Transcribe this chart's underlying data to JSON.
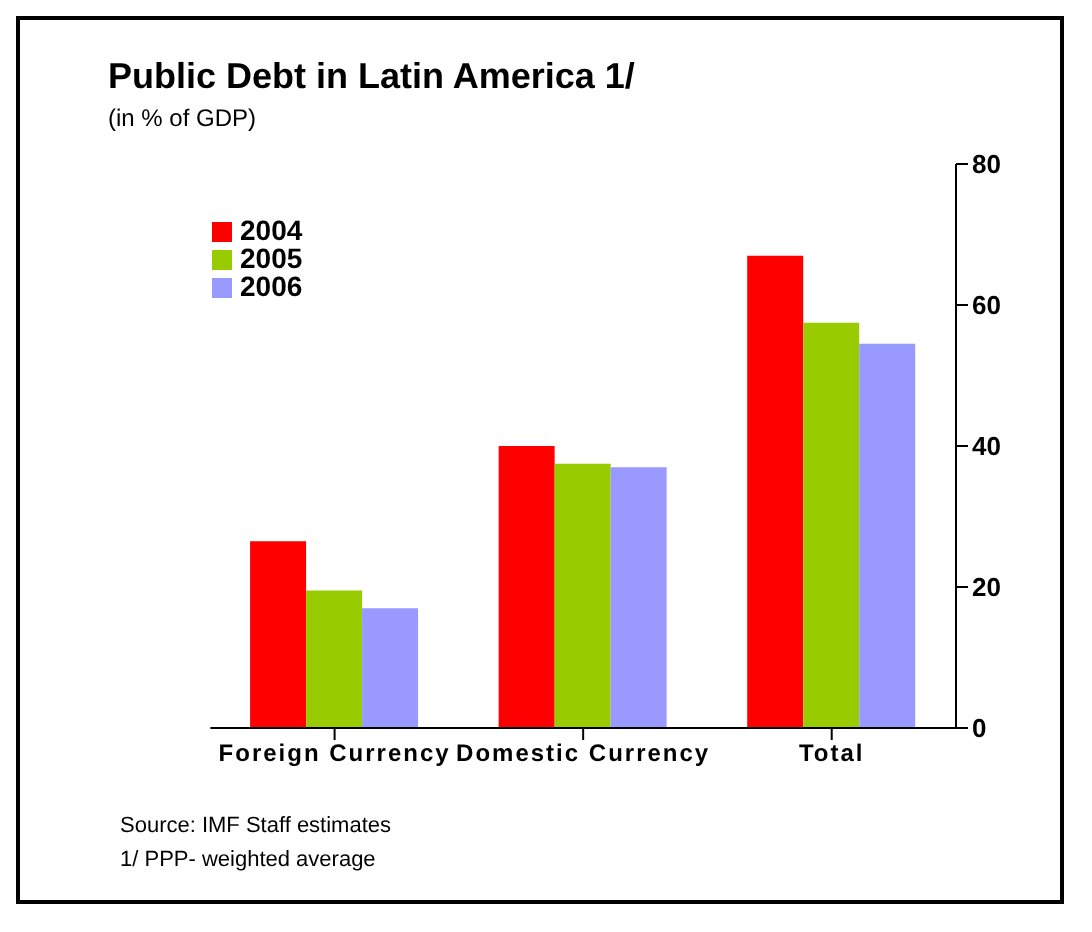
{
  "chart_data": {
    "type": "bar",
    "title": "Public Debt in Latin America 1/",
    "subtitle": "(in % of GDP)",
    "categories": [
      "Foreign Currency",
      "Domestic Currency",
      "Total"
    ],
    "series": [
      {
        "name": "2004",
        "color": "#ff0000",
        "values": [
          26.5,
          40,
          67
        ]
      },
      {
        "name": "2005",
        "color": "#99cc00",
        "values": [
          19.5,
          37.5,
          57.5
        ]
      },
      {
        "name": "2006",
        "color": "#9999ff",
        "values": [
          17,
          37,
          54.5
        ]
      }
    ],
    "ylim": [
      0,
      80
    ],
    "yticks": [
      0,
      20,
      40,
      60,
      80
    ],
    "grid": false,
    "legend": "top left",
    "annotations": [
      "Source: IMF Staff estimates",
      "1/ PPP- weighted average"
    ]
  }
}
